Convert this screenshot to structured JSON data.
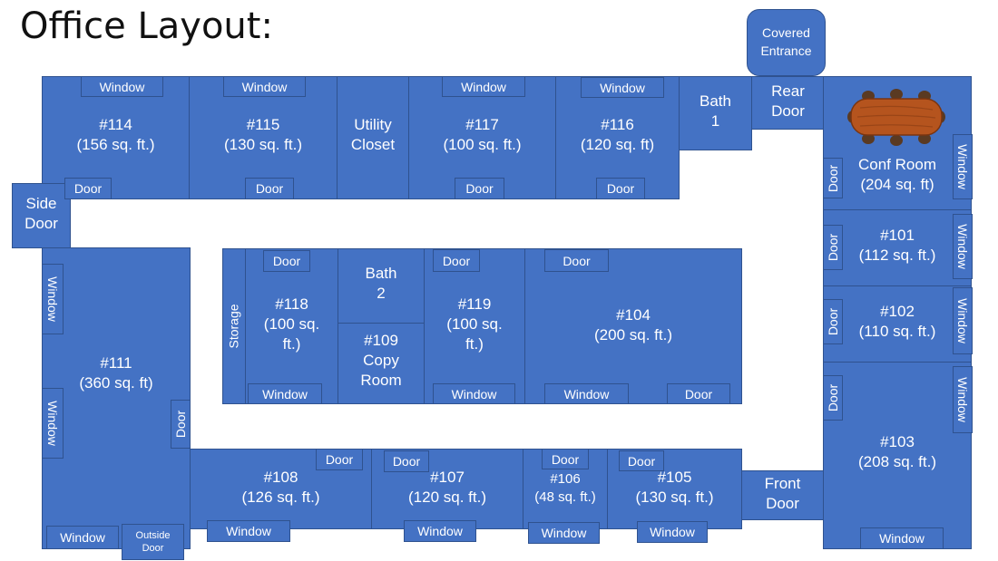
{
  "title": "Office Layout:",
  "labels": {
    "window": "Window",
    "door": "Door",
    "storage": "Storage",
    "outside_door": [
      "Outside",
      "Door"
    ],
    "covered_entrance": [
      "Covered",
      "Entrance"
    ]
  },
  "rooms": {
    "r114": [
      "#114",
      "(156 sq. ft.)"
    ],
    "r115": [
      "#115",
      "(130 sq. ft.)"
    ],
    "utility": [
      "Utility",
      "Closet"
    ],
    "r117": [
      "#117",
      "(100 sq. ft.)"
    ],
    "r116": [
      "#116",
      "(120 sq. ft)"
    ],
    "bath1": [
      "Bath",
      "1"
    ],
    "rear": [
      "Rear",
      "Door"
    ],
    "conf": [
      "Conf Room",
      "(204 sq. ft)"
    ],
    "side": [
      "Side",
      "Door"
    ],
    "r101": [
      "#101",
      "(112 sq. ft.)"
    ],
    "r102": [
      "#102",
      "(110 sq. ft.)"
    ],
    "r103": [
      "#103",
      "(208 sq. ft.)"
    ],
    "r111": [
      "#111",
      "(360 sq. ft)"
    ],
    "r118": [
      "#118",
      "(100 sq.",
      "ft.)"
    ],
    "bath2": [
      "Bath",
      "2"
    ],
    "r109": [
      "#109",
      "Copy",
      "Room"
    ],
    "r119": [
      "#119",
      "(100 sq.",
      "ft.)"
    ],
    "r104": [
      "#104",
      "(200 sq. ft.)"
    ],
    "r108": [
      "#108",
      "(126 sq. ft.)"
    ],
    "r107": [
      "#107",
      "(120 sq. ft.)"
    ],
    "r106": [
      "#106",
      "(48 sq. ft.)"
    ],
    "r105": [
      "#105",
      "(130 sq. ft.)"
    ],
    "front": [
      "Front",
      "Door"
    ]
  },
  "colors": {
    "room_fill": "#4472c4",
    "room_border": "#2f528f",
    "table_wood": "#b5541e",
    "chair": "#5a3a22"
  }
}
